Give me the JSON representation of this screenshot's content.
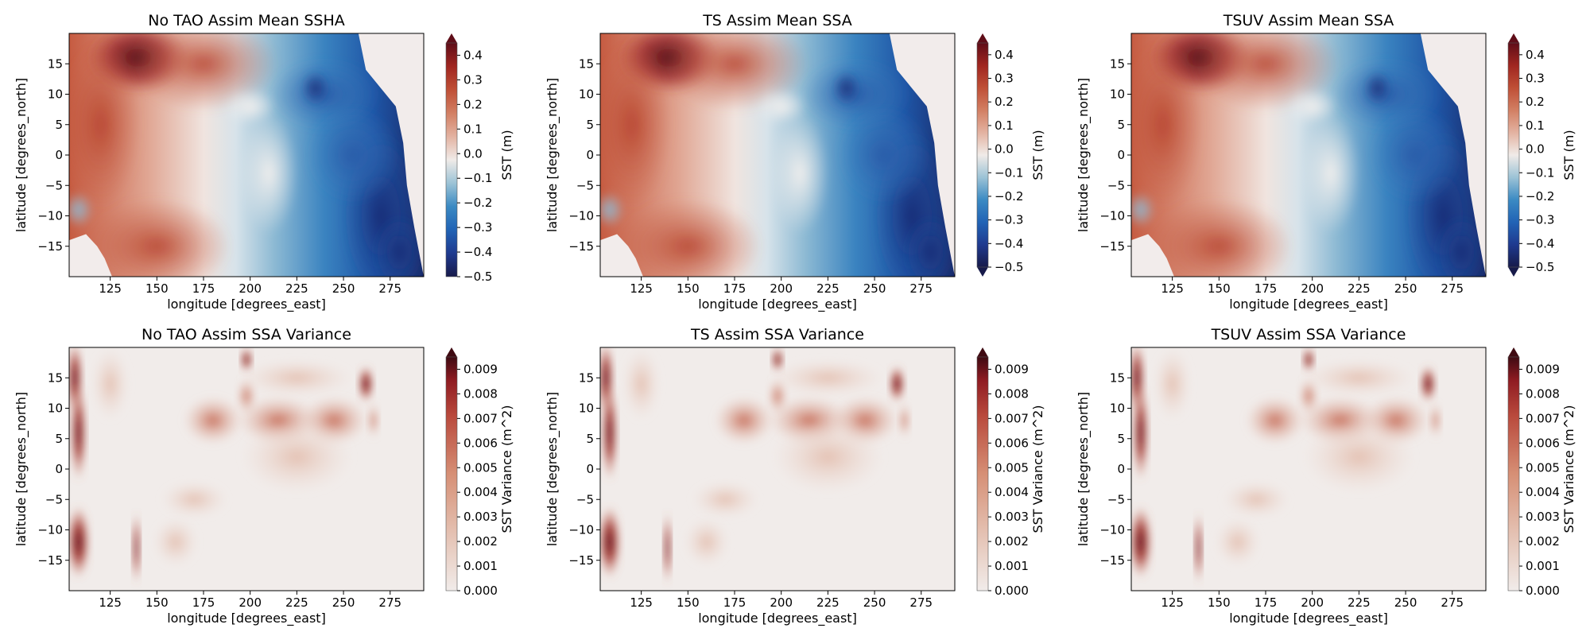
{
  "chart_data": [
    {
      "type": "heatmap",
      "title": "No TAO Assim Mean SSHA",
      "xlabel": "longitude [degrees_east]",
      "ylabel": "latitude [degrees_north]",
      "xticks": [
        "125",
        "150",
        "175",
        "200",
        "225",
        "250",
        "275"
      ],
      "yticks": [
        "15",
        "10",
        "5",
        "0",
        "−5",
        "−10",
        "−15"
      ],
      "xlim": [
        103,
        293
      ],
      "ylim": [
        -20,
        20
      ],
      "colorbar": {
        "label": "SST (m)",
        "range": [
          -0.5,
          0.45
        ],
        "ticks": [
          "0.4",
          "0.3",
          "0.2",
          "0.1",
          "0.0",
          "−0.1",
          "−0.2",
          "−0.3",
          "−0.4",
          "−0.5"
        ],
        "extend": "max",
        "colormap": "balance (blue–white–red)"
      },
      "field_summary": "positive SSHA (red) west of ~200E, maximum near 130E 17N; negative (blue) east of ~215E, minimum near 280E 15S"
    },
    {
      "type": "heatmap",
      "title": "TS Assim Mean SSA",
      "xlabel": "longitude [degrees_east]",
      "ylabel": "latitude [degrees_north]",
      "xticks": [
        "125",
        "150",
        "175",
        "200",
        "225",
        "250",
        "275"
      ],
      "yticks": [
        "15",
        "10",
        "5",
        "0",
        "−5",
        "−10",
        "−15"
      ],
      "xlim": [
        103,
        293
      ],
      "ylim": [
        -20,
        20
      ],
      "colorbar": {
        "label": "SST (m)",
        "range": [
          -0.5,
          0.45
        ],
        "ticks": [
          "0.4",
          "0.3",
          "0.2",
          "0.1",
          "0.0",
          "−0.1",
          "−0.2",
          "−0.3",
          "−0.4",
          "−0.5"
        ],
        "extend": "both",
        "colormap": "balance (blue–white–red)"
      },
      "field_summary": "similar west-positive / east-negative pattern"
    },
    {
      "type": "heatmap",
      "title": "TSUV Assim Mean SSA",
      "xlabel": "longitude [degrees_east]",
      "ylabel": "latitude [degrees_north]",
      "xticks": [
        "125",
        "150",
        "175",
        "200",
        "225",
        "250",
        "275"
      ],
      "yticks": [
        "15",
        "10",
        "5",
        "0",
        "−5",
        "−10",
        "−15"
      ],
      "xlim": [
        103,
        293
      ],
      "ylim": [
        -20,
        20
      ],
      "colorbar": {
        "label": "SST (m)",
        "range": [
          -0.5,
          0.45
        ],
        "ticks": [
          "0.4",
          "0.3",
          "0.2",
          "0.1",
          "0.0",
          "−0.1",
          "−0.2",
          "−0.3",
          "−0.4",
          "−0.5"
        ],
        "extend": "both",
        "colormap": "balance (blue–white–red)"
      },
      "field_summary": "similar west-positive / east-negative pattern"
    },
    {
      "type": "heatmap",
      "title": "No TAO Assim SSA Variance",
      "xlabel": "longitude [degrees_east]",
      "ylabel": "latitude [degrees_north]",
      "xticks": [
        "125",
        "150",
        "175",
        "200",
        "225",
        "250",
        "275"
      ],
      "yticks": [
        "15",
        "10",
        "5",
        "0",
        "−5",
        "−10",
        "−15"
      ],
      "xlim": [
        103,
        293
      ],
      "ylim": [
        -20,
        20
      ],
      "colorbar": {
        "label": "SST Variance (m^2)",
        "range": [
          0,
          0.0095
        ],
        "ticks": [
          "0.009",
          "0.008",
          "0.007",
          "0.006",
          "0.005",
          "0.004",
          "0.003",
          "0.002",
          "0.001",
          "0.000"
        ],
        "extend": "max",
        "colormap": "amp (white–red)"
      },
      "field_summary": "high variance at western boundary and near 262E 14N; band near 5-12N"
    },
    {
      "type": "heatmap",
      "title": "TS Assim SSA Variance",
      "xlabel": "longitude [degrees_east]",
      "ylabel": "latitude [degrees_north]",
      "xticks": [
        "125",
        "150",
        "175",
        "200",
        "225",
        "250",
        "275"
      ],
      "yticks": [
        "15",
        "10",
        "5",
        "0",
        "−5",
        "−10",
        "−15"
      ],
      "xlim": [
        103,
        293
      ],
      "ylim": [
        -20,
        20
      ],
      "colorbar": {
        "label": "SST Variance (m^2)",
        "range": [
          0,
          0.0095
        ],
        "ticks": [
          "0.009",
          "0.008",
          "0.007",
          "0.006",
          "0.005",
          "0.004",
          "0.003",
          "0.002",
          "0.001",
          "0.000"
        ],
        "extend": "max",
        "colormap": "amp (white–red)"
      },
      "field_summary": "similar variance pattern"
    },
    {
      "type": "heatmap",
      "title": "TSUV Assim SSA Variance",
      "xlabel": "longitude [degrees_east]",
      "ylabel": "latitude [degrees_north]",
      "xticks": [
        "125",
        "150",
        "175",
        "200",
        "225",
        "250",
        "275"
      ],
      "yticks": [
        "15",
        "10",
        "5",
        "0",
        "−5",
        "−10",
        "−15"
      ],
      "xlim": [
        103,
        293
      ],
      "ylim": [
        -20,
        20
      ],
      "colorbar": {
        "label": "SST Variance (m^2)",
        "range": [
          0,
          0.0095
        ],
        "ticks": [
          "0.009",
          "0.008",
          "0.007",
          "0.006",
          "0.005",
          "0.004",
          "0.003",
          "0.002",
          "0.001",
          "0.000"
        ],
        "extend": "max",
        "colormap": "amp (white–red)"
      },
      "field_summary": "similar variance pattern"
    }
  ]
}
